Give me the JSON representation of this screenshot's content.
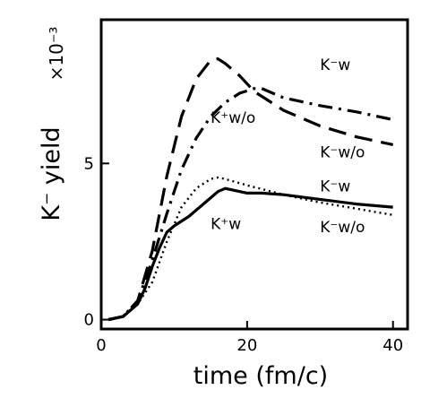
{
  "chart_data": {
    "type": "line",
    "xlabel": "time (fm/c)",
    "ylabel": "K⁻ yield",
    "yscale_label": "×10⁻³",
    "xlim": [
      0,
      42
    ],
    "ylim": [
      -0.3,
      9.6
    ],
    "xticks": [
      0,
      20,
      40
    ],
    "yticks": [
      0,
      5
    ],
    "grid": false,
    "series": [
      {
        "style": "dashed",
        "x": [
          1,
          3,
          5,
          7,
          9,
          11,
          13,
          15,
          16,
          17,
          19,
          21,
          25,
          30,
          35,
          40
        ],
        "y": [
          0.0,
          0.1,
          0.6,
          2.2,
          4.6,
          6.5,
          7.7,
          8.3,
          8.35,
          8.2,
          7.8,
          7.3,
          6.7,
          6.2,
          5.85,
          5.6
        ]
      },
      {
        "style": "dash-dot",
        "x": [
          1,
          3,
          5,
          7,
          9,
          11,
          13,
          15,
          17,
          19,
          21,
          22,
          25,
          30,
          35,
          40
        ],
        "y": [
          0.0,
          0.1,
          0.6,
          1.9,
          3.4,
          4.8,
          5.8,
          6.5,
          6.95,
          7.25,
          7.4,
          7.4,
          7.1,
          6.85,
          6.65,
          6.4
        ]
      },
      {
        "style": "dotted",
        "x": [
          1,
          3,
          5,
          7,
          9,
          11,
          13,
          15,
          16,
          17,
          20,
          25,
          30,
          35,
          40
        ],
        "y": [
          0.0,
          0.1,
          0.5,
          1.2,
          2.5,
          3.6,
          4.2,
          4.5,
          4.55,
          4.5,
          4.3,
          4.0,
          3.75,
          3.55,
          3.35
        ]
      },
      {
        "style": "solid",
        "x": [
          1,
          3,
          5,
          6,
          7,
          8,
          9,
          10,
          12,
          14,
          16,
          17,
          18,
          20,
          22,
          25,
          30,
          35,
          40
        ],
        "y": [
          0.0,
          0.1,
          0.5,
          1.0,
          1.7,
          2.3,
          2.8,
          3.0,
          3.3,
          3.7,
          4.1,
          4.2,
          4.15,
          4.05,
          4.05,
          4.0,
          3.85,
          3.7,
          3.6
        ]
      }
    ],
    "annotations": [
      {
        "text": "K⁻w",
        "x": 30,
        "y": 8.0
      },
      {
        "text": "K⁺w/o",
        "x": 15,
        "y": 6.3
      },
      {
        "text": "K⁻w/o",
        "x": 30,
        "y": 5.2
      },
      {
        "text": "K⁻w",
        "x": 30,
        "y": 4.1
      },
      {
        "text": "K⁺w",
        "x": 15,
        "y": 2.9
      },
      {
        "text": "K⁻w/o",
        "x": 30,
        "y": 2.8
      }
    ]
  }
}
